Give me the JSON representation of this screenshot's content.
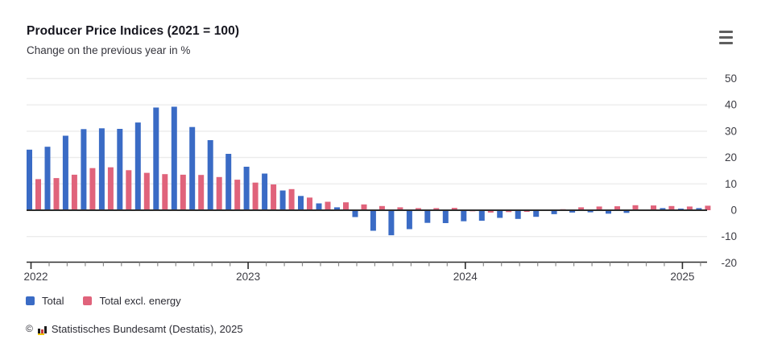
{
  "footer": {
    "copyright": "©",
    "source": "Statistisches Bundesamt (Destatis), 2025"
  },
  "menu": {
    "icon": "hamburger-menu"
  },
  "chart_data": {
    "type": "bar",
    "title": "Producer Price Indices (2021 = 100)",
    "subtitle": "Change on the previous year in %",
    "ylabel": "",
    "xlabel": "",
    "ylim": [
      -20,
      50
    ],
    "yticks": [
      50,
      40,
      30,
      20,
      10,
      0,
      -10,
      -20
    ],
    "grid": true,
    "legend_position": "bottom-left",
    "year_labels": [
      "2022",
      "2023",
      "2024",
      "2025"
    ],
    "year_tick_months": [
      0,
      12,
      24,
      36
    ],
    "months": [
      "2022-01",
      "2022-02",
      "2022-03",
      "2022-04",
      "2022-05",
      "2022-06",
      "2022-07",
      "2022-08",
      "2022-09",
      "2022-10",
      "2022-11",
      "2022-12",
      "2023-01",
      "2023-02",
      "2023-03",
      "2023-04",
      "2023-05",
      "2023-06",
      "2023-07",
      "2023-08",
      "2023-09",
      "2023-10",
      "2023-11",
      "2023-12",
      "2024-01",
      "2024-02",
      "2024-03",
      "2024-04",
      "2024-05",
      "2024-06",
      "2024-07",
      "2024-08",
      "2024-09",
      "2024-10",
      "2024-11",
      "2024-12",
      "2025-01",
      "2025-02"
    ],
    "series": [
      {
        "name": "Total",
        "color": "#3a6bc5",
        "values": [
          23.0,
          24.1,
          28.3,
          30.8,
          31.1,
          30.9,
          33.3,
          39.0,
          39.3,
          31.6,
          26.6,
          21.4,
          16.5,
          13.9,
          7.5,
          5.4,
          2.6,
          1.1,
          -2.6,
          -7.8,
          -9.5,
          -7.2,
          -4.8,
          -4.9,
          -4.2,
          -4.0,
          -2.9,
          -3.3,
          -2.5,
          -1.5,
          -0.9,
          -0.8,
          -1.3,
          -1.0,
          0.1,
          0.8,
          0.6,
          0.8
        ]
      },
      {
        "name": "Total excl. energy",
        "color": "#e0637b",
        "values": [
          11.8,
          12.2,
          13.5,
          16.0,
          16.3,
          15.2,
          14.2,
          13.7,
          13.5,
          13.4,
          12.6,
          11.6,
          10.5,
          9.8,
          8.0,
          4.8,
          3.2,
          3.0,
          2.2,
          1.6,
          1.1,
          0.8,
          0.8,
          0.9,
          -0.4,
          -0.9,
          -0.7,
          -0.6,
          0.0,
          0.4,
          1.1,
          1.4,
          1.5,
          1.9,
          1.8,
          1.6,
          1.4,
          1.7
        ]
      }
    ]
  }
}
